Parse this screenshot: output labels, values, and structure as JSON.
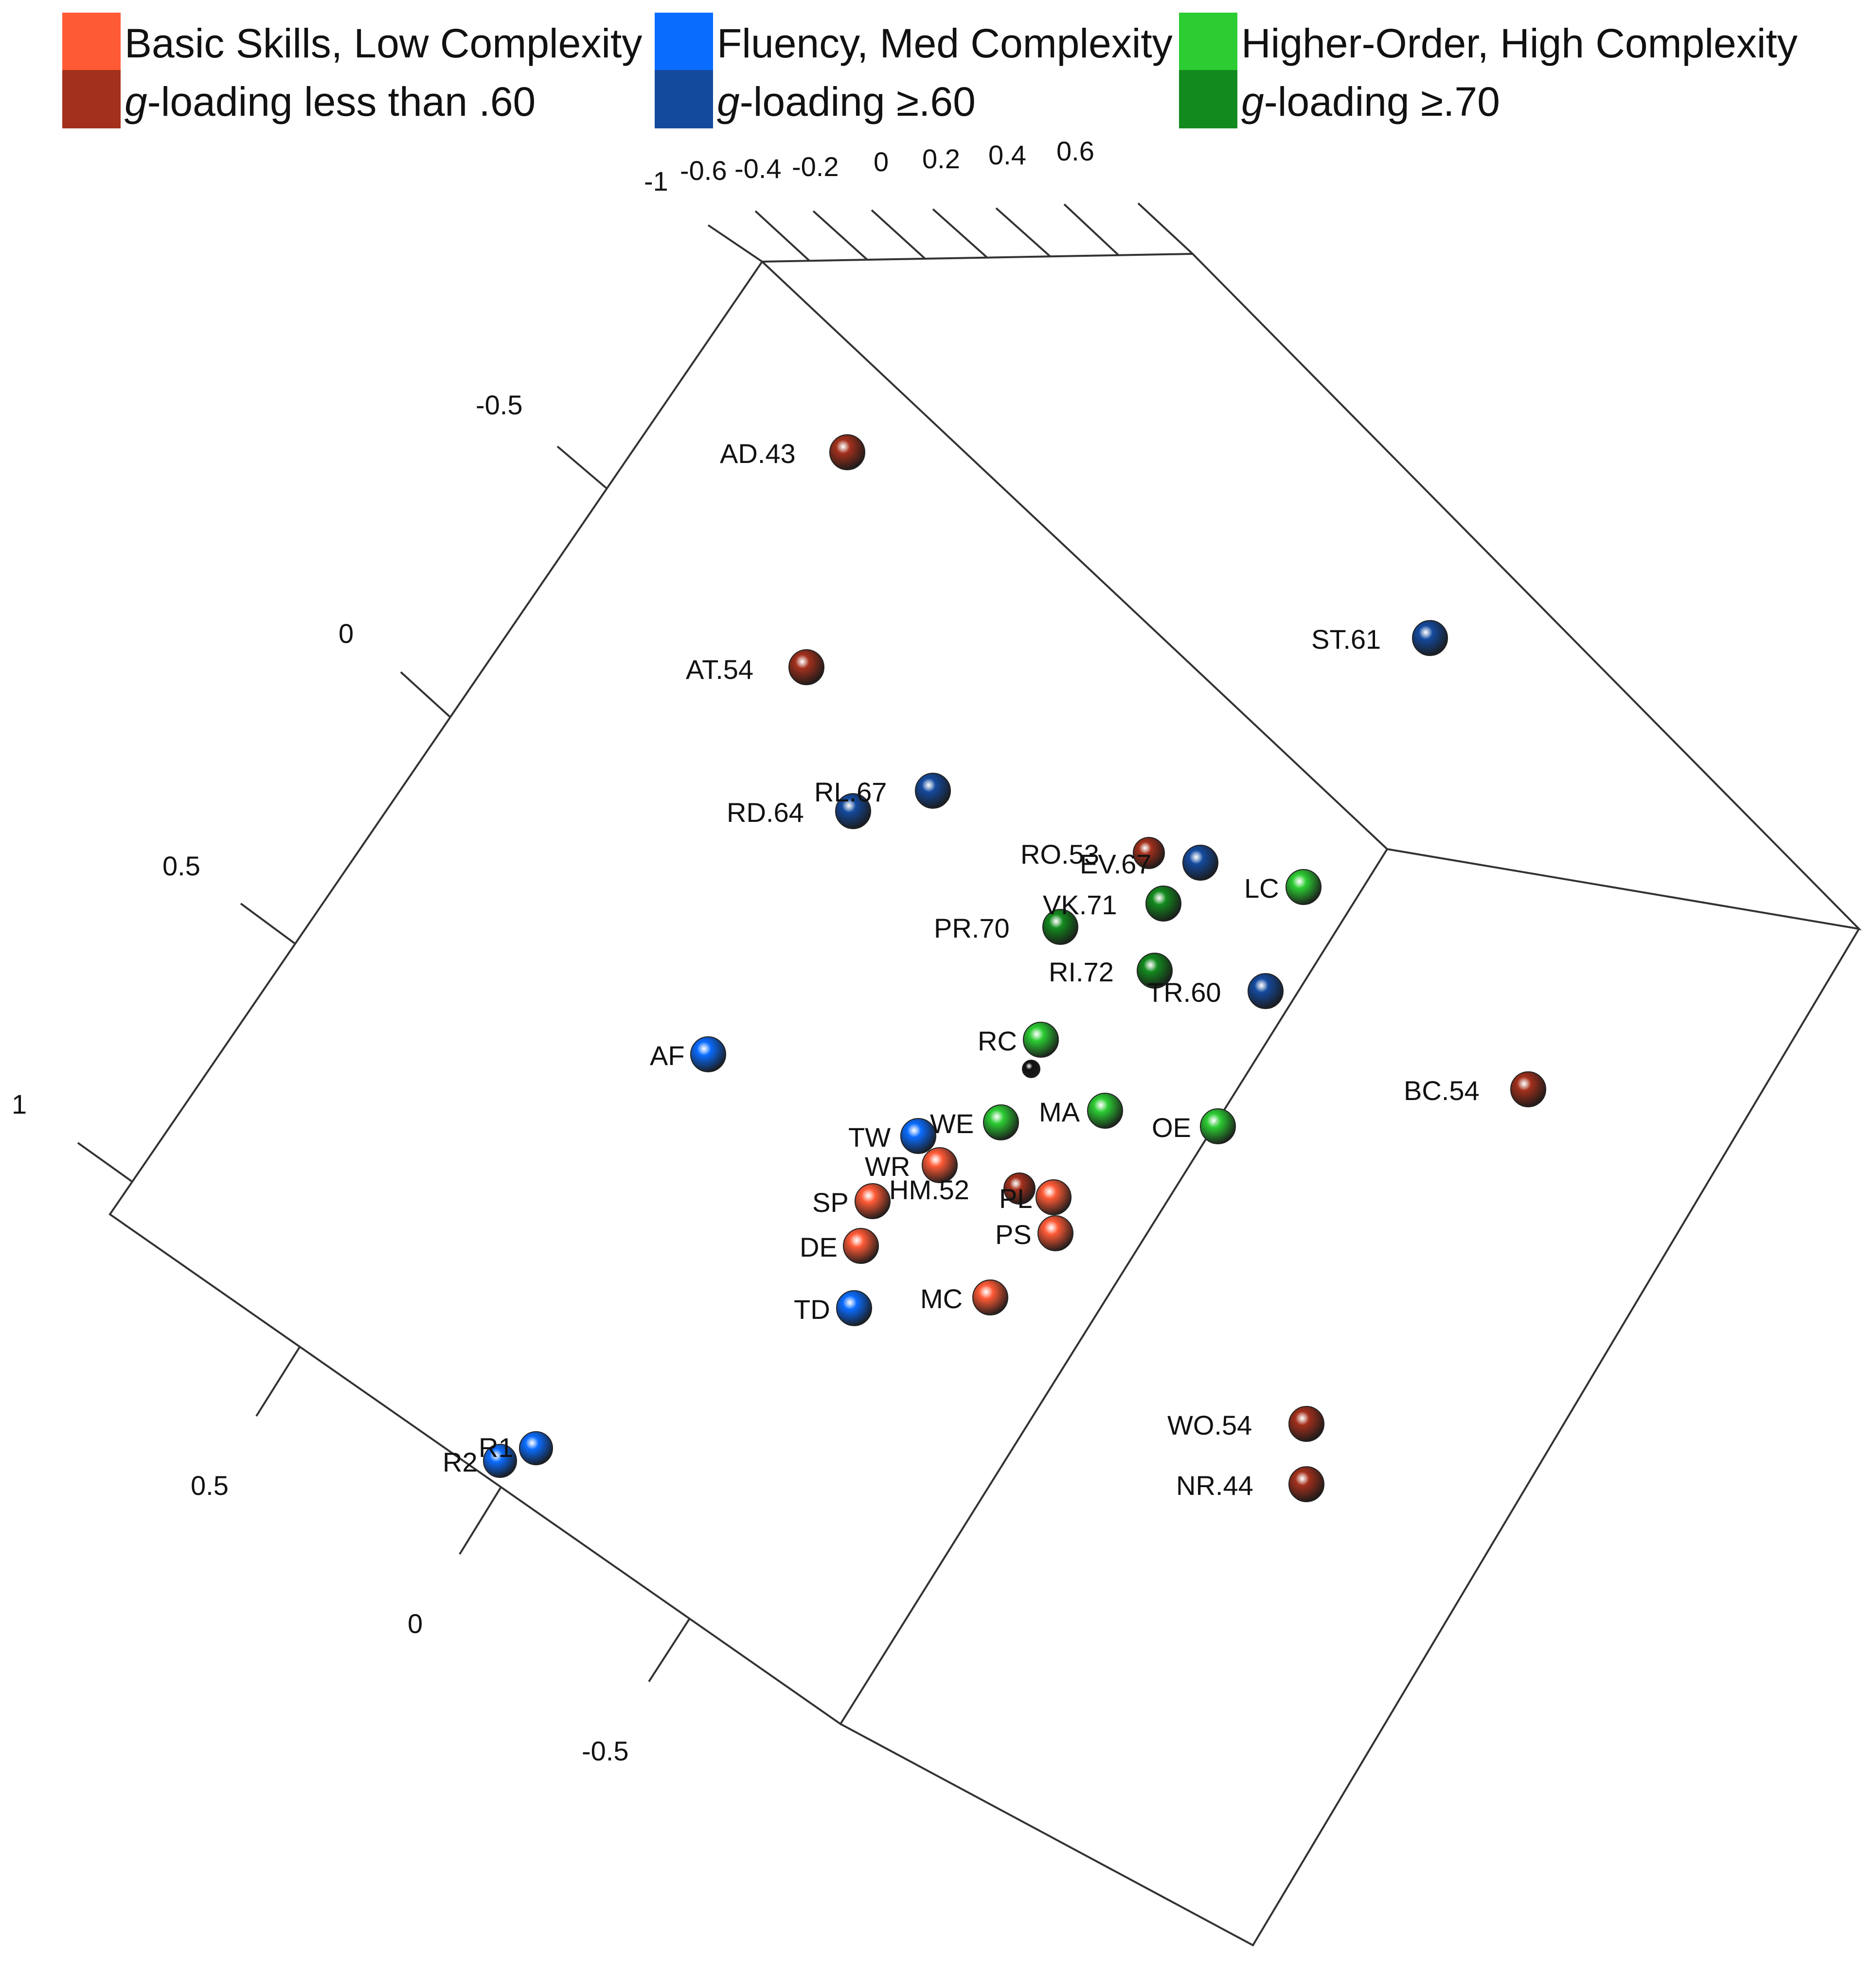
{
  "legend": [
    {
      "label_prefix": "",
      "label_italic": "",
      "label": "Basic Skills, Low Complexity",
      "color": "#ff5a36"
    },
    {
      "label_prefix": "",
      "label_italic": "",
      "label": "Fluency, Med Complexity",
      "color": "#0a6cff"
    },
    {
      "label_prefix": "",
      "label_italic": "",
      "label": "Higher-Order, High Complexity",
      "color": "#2ccc33"
    },
    {
      "label_prefix": "",
      "label_italic": "g",
      "label": "-loading less than .60",
      "color": "#a3301c"
    },
    {
      "label_prefix": "",
      "label_italic": "g",
      "label": "-loading ≥.60",
      "color": "#144a9e"
    },
    {
      "label_prefix": "",
      "label_italic": "g",
      "label": "-loading ≥.70",
      "color": "#138a1e"
    }
  ],
  "chart_data": {
    "type": "scatter",
    "dimensions": 3,
    "title": "",
    "axis_ticks": {
      "top": [
        "-1",
        "-0.6",
        "-0.4",
        "-0.2",
        "0",
        "0.2",
        "0.4",
        "0.6"
      ],
      "left": [
        "-0.5",
        "0",
        "0.5",
        "1"
      ],
      "bottom": [
        "0.5",
        "0",
        "-0.5"
      ]
    },
    "colors": {
      "basic_light": "#ff5a36",
      "basic_dark": "#a3301c",
      "fluency_light": "#0a6cff",
      "fluency_dark": "#144a9e",
      "higher_light": "#2ccc33",
      "higher_dark": "#138a1e",
      "center": "#111111"
    },
    "points": [
      {
        "label": "AD.43",
        "group": "basic_dark"
      },
      {
        "label": "AT.54",
        "group": "basic_dark"
      },
      {
        "label": "ST.61",
        "group": "fluency_dark"
      },
      {
        "label": "RL.67",
        "group": "fluency_dark"
      },
      {
        "label": "RD.64",
        "group": "fluency_dark"
      },
      {
        "label": "RO.53",
        "group": "basic_dark"
      },
      {
        "label": "EV.67",
        "group": "fluency_dark"
      },
      {
        "label": "LC",
        "group": "higher_light"
      },
      {
        "label": "VK.71",
        "group": "higher_dark"
      },
      {
        "label": "PR.70",
        "group": "higher_dark"
      },
      {
        "label": "RI.72",
        "group": "higher_dark"
      },
      {
        "label": "TR.60",
        "group": "fluency_dark"
      },
      {
        "label": "RC",
        "group": "higher_light"
      },
      {
        "label": "AF",
        "group": "fluency_light"
      },
      {
        "label": "BC.54",
        "group": "basic_dark"
      },
      {
        "label": "MA",
        "group": "higher_light"
      },
      {
        "label": "WE",
        "group": "higher_light"
      },
      {
        "label": "OE",
        "group": "higher_light"
      },
      {
        "label": "TW",
        "group": "fluency_light"
      },
      {
        "label": "WR",
        "group": "basic_light"
      },
      {
        "label": "HM.52",
        "group": "basic_dark"
      },
      {
        "label": "PL",
        "group": "basic_light"
      },
      {
        "label": "SP",
        "group": "basic_light"
      },
      {
        "label": "PS",
        "group": "basic_light"
      },
      {
        "label": "DE",
        "group": "basic_light"
      },
      {
        "label": "MC",
        "group": "basic_light"
      },
      {
        "label": "TD",
        "group": "fluency_light"
      },
      {
        "label": "WO.54",
        "group": "basic_dark"
      },
      {
        "label": "NR.44",
        "group": "basic_dark"
      },
      {
        "label": "R1",
        "group": "fluency_light"
      },
      {
        "label": "R2",
        "group": "fluency_light"
      },
      {
        "label": "",
        "group": "center"
      }
    ]
  }
}
